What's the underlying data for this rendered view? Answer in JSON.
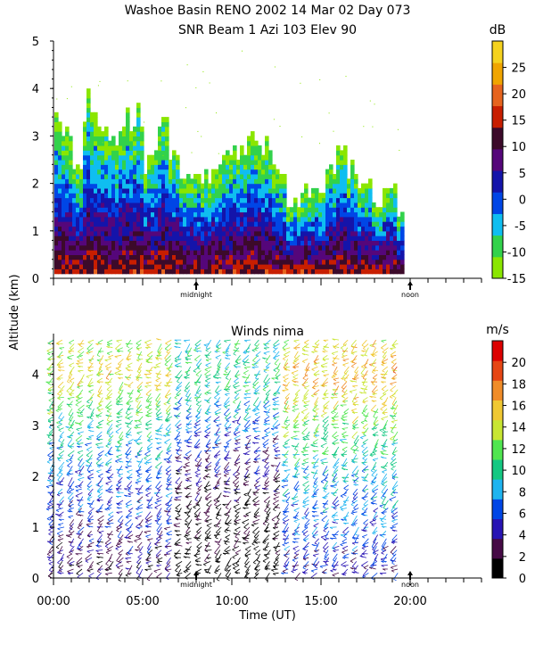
{
  "header": {
    "title_line1": "Washoe Basin RENO 2002  14 Mar 02 Day 073",
    "title_line2": "SNR Beam 1 Azi 103 Elev 90"
  },
  "chart_data": [
    {
      "type": "heatmap",
      "name": "snr",
      "ylabel": "Altitude (km)",
      "ylim": [
        0,
        5
      ],
      "yticks": [
        "0",
        "1",
        "2",
        "3",
        "4",
        "5"
      ],
      "xlim_hours": [
        0,
        24
      ],
      "markers": [
        {
          "label": "midnight",
          "hour": 8
        },
        {
          "label": "noon",
          "hour": 20
        }
      ],
      "colorbar": {
        "unit": "dB",
        "ticks": [
          "-15",
          "-10",
          "-5",
          "0",
          "5",
          "10",
          "15",
          "20",
          "25"
        ],
        "min": -15,
        "max": 30,
        "colors": [
          "#8ae600",
          "#32d24b",
          "#0fbef0",
          "#0046e6",
          "#1414aa",
          "#55067a",
          "#3c0a2a",
          "#c81e00",
          "#e6641e",
          "#f0a500",
          "#f5d21e"
        ]
      },
      "columns": [
        {
          "x": 0.05,
          "top": 3.6
        },
        {
          "x": 0.6,
          "top": 3.3
        },
        {
          "x": 1.3,
          "top": 2.4
        },
        {
          "x": 1.9,
          "top": 3.8
        },
        {
          "x": 2.5,
          "top": 3.4
        },
        {
          "x": 3.4,
          "top": 3.2
        },
        {
          "x": 4.1,
          "top": 3.5
        },
        {
          "x": 4.6,
          "top": 3.6
        },
        {
          "x": 5.5,
          "top": 2.5
        },
        {
          "x": 6.1,
          "top": 3.5
        },
        {
          "x": 6.6,
          "top": 2.6
        },
        {
          "x": 7.5,
          "top": 2.3
        },
        {
          "x": 8.2,
          "top": 2.2
        },
        {
          "x": 9.2,
          "top": 2.4
        },
        {
          "x": 10.0,
          "top": 2.8
        },
        {
          "x": 10.9,
          "top": 2.9
        },
        {
          "x": 11.8,
          "top": 2.8
        },
        {
          "x": 12.5,
          "top": 2.5
        },
        {
          "x": 13.3,
          "top": 1.6
        },
        {
          "x": 14.0,
          "top": 1.9
        },
        {
          "x": 14.7,
          "top": 1.8
        },
        {
          "x": 15.4,
          "top": 2.5
        },
        {
          "x": 16.1,
          "top": 2.8
        },
        {
          "x": 16.7,
          "top": 2.4
        },
        {
          "x": 17.3,
          "top": 2.0
        },
        {
          "x": 18.0,
          "top": 1.6
        },
        {
          "x": 18.8,
          "top": 2.0
        },
        {
          "x": 19.5,
          "top": 1.4
        }
      ]
    },
    {
      "type": "scatter",
      "name": "winds",
      "title": "Winds nima",
      "xlabel": "Time (UT)",
      "ylabel": "Altitude (km)",
      "ylim": [
        0,
        4.8
      ],
      "yticks": [
        "0",
        "1",
        "2",
        "3",
        "4"
      ],
      "xlim_hours": [
        0,
        24
      ],
      "xticks": [
        {
          "label": "00:00",
          "hour": 0
        },
        {
          "label": "05:00",
          "hour": 5
        },
        {
          "label": "10:00",
          "hour": 10
        },
        {
          "label": "15:00",
          "hour": 15
        },
        {
          "label": "20:00",
          "hour": 20
        }
      ],
      "markers": [
        {
          "label": "midnight",
          "hour": 8
        },
        {
          "label": "noon",
          "hour": 20
        }
      ],
      "colorbar": {
        "unit": "m/s",
        "ticks": [
          "0",
          "2",
          "4",
          "6",
          "8",
          "10",
          "12",
          "14",
          "16",
          "18",
          "20"
        ],
        "min": 0,
        "max": 22,
        "colors": [
          "#000000",
          "#460a46",
          "#2814b4",
          "#0046e6",
          "#1eb4f0",
          "#14c882",
          "#50e650",
          "#c8e632",
          "#f0c832",
          "#f08c28",
          "#e64614",
          "#dc0000"
        ]
      },
      "x_range_hours": [
        0,
        19.5
      ],
      "vertical_profile": [
        {
          "alt": 0.2,
          "speed": 3
        },
        {
          "alt": 1.0,
          "speed": 5
        },
        {
          "alt": 2.0,
          "speed": 7
        },
        {
          "alt": 3.0,
          "speed": 11
        },
        {
          "alt": 4.0,
          "speed": 16
        },
        {
          "alt": 4.7,
          "speed": 14
        }
      ]
    }
  ]
}
